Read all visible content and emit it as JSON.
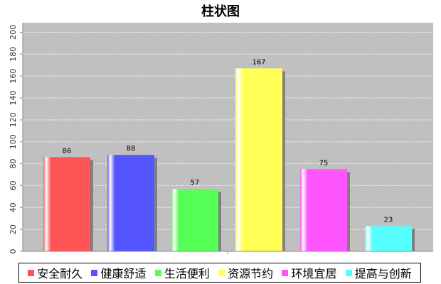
{
  "chart_data": {
    "type": "bar",
    "title": "柱状图",
    "categories": [
      "安全耐久",
      "健康舒适",
      "生活便利",
      "资源节约",
      "环境宜居",
      "提高与创新"
    ],
    "values": [
      86,
      88,
      57,
      167,
      75,
      23
    ],
    "colors": [
      "#ff5555",
      "#5555ff",
      "#55ff55",
      "#ffff55",
      "#ff55ff",
      "#55ffff"
    ],
    "ylim": [
      0,
      210
    ],
    "yticks": [
      0,
      20,
      40,
      60,
      80,
      100,
      120,
      140,
      160,
      180,
      200
    ],
    "grid": true,
    "legend_position": "bottom",
    "plot_background": "#c0c0c0"
  }
}
